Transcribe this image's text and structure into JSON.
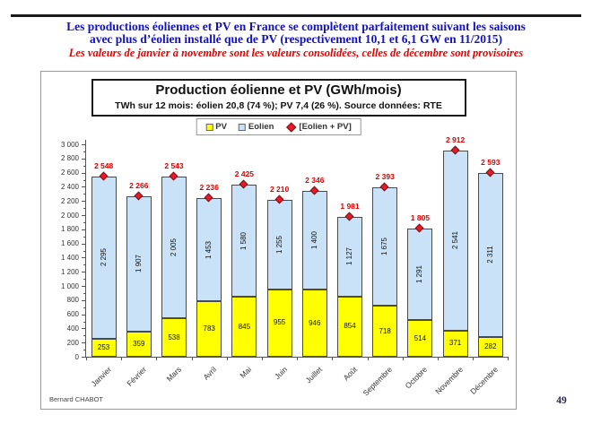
{
  "header": {
    "line1": "Les productions éoliennes et PV en France se complètent parfaitement suivant les saisons",
    "line2": "avec plus d’éolien installé que de PV (respectivement 10,1 et 6,1 GW en 11/2015)",
    "note": "Les valeurs de janvier à novembre sont les valeurs consolidées, celles de décembre sont provisoires"
  },
  "footer": {
    "credit": "Bernard CHABOT",
    "page_number": "49"
  },
  "colors": {
    "headline_blue": "#1212C4",
    "note_red": "#E80000",
    "pv_yellow": "#FFFF00",
    "eolien_blue": "#C9E2F8",
    "bar_border": "#4a4a4a",
    "marker_red": "#E8192C",
    "marker_border": "#7a0f0f",
    "total_label_red": "#E00000",
    "frame_border": "#9a9a9a"
  },
  "chart_data": {
    "type": "bar",
    "stacked": true,
    "title": "Production éolienne et PV (GWh/mois)",
    "subtitle": "TWh sur 12 mois: éolien 20,8 (74 %); PV 7,4 (26 %).  Source données: RTE",
    "unit": "GWh/mois",
    "legend_position": "top",
    "grid": false,
    "categories": [
      "Janvier",
      "Février",
      "Mars",
      "Avril",
      "Mai",
      "Juin",
      "Juillet",
      "Août",
      "Septembre",
      "Octobre",
      "Novembre",
      "Décembre"
    ],
    "series": [
      {
        "name": "PV",
        "color": "#FFFF00",
        "values": [
          253,
          359,
          538,
          783,
          845,
          955,
          946,
          854,
          718,
          514,
          371,
          282
        ],
        "labels": [
          "253",
          "359",
          "538",
          "783",
          "845",
          "955",
          "946",
          "854",
          "718",
          "514",
          "371",
          "282"
        ]
      },
      {
        "name": "Eolien",
        "color": "#C9E2F8",
        "values": [
          2295,
          1907,
          2005,
          1453,
          1580,
          1255,
          1400,
          1127,
          1675,
          1291,
          2541,
          2311
        ],
        "labels": [
          "2 295",
          "1 907",
          "2 005",
          "1 453",
          "1 580",
          "1 255",
          "1 400",
          "1 127",
          "1 675",
          "1 291",
          "2 541",
          "2 311"
        ]
      }
    ],
    "totals": {
      "name": "[Eolien + PV]",
      "values": [
        2548,
        2266,
        2543,
        2236,
        2425,
        2210,
        2346,
        1981,
        2393,
        1805,
        2912,
        2593
      ],
      "labels": [
        "2 548",
        "2 266",
        "2 543",
        "2 236",
        "2 425",
        "2 210",
        "2 346",
        "1 981",
        "2 393",
        "1 805",
        "2 912",
        "2 593"
      ]
    },
    "legend": [
      {
        "label": "PV",
        "marker": "square",
        "color": "#FFFF00"
      },
      {
        "label": "Eolien",
        "marker": "square",
        "color": "#C9E2F8"
      },
      {
        "label": "[Eolien + PV]",
        "marker": "diamond",
        "color": "#E8192C"
      }
    ],
    "ylim": [
      0,
      3000
    ],
    "y_tick_step": 200,
    "y_minor_tick_step": 100,
    "y_ticks": [
      {
        "value": 0,
        "label": "0"
      },
      {
        "value": 200,
        "label": "200"
      },
      {
        "value": 400,
        "label": "400"
      },
      {
        "value": 600,
        "label": "600"
      },
      {
        "value": 800,
        "label": "800"
      },
      {
        "value": 1000,
        "label": "1 000"
      },
      {
        "value": 1200,
        "label": "1 200"
      },
      {
        "value": 1400,
        "label": "1 400"
      },
      {
        "value": 1600,
        "label": "1 600"
      },
      {
        "value": 1800,
        "label": "1 800"
      },
      {
        "value": 2000,
        "label": "2 000"
      },
      {
        "value": 2200,
        "label": "2 200"
      },
      {
        "value": 2400,
        "label": "2 400"
      },
      {
        "value": 2600,
        "label": "2 600"
      },
      {
        "value": 2800,
        "label": "2 800"
      },
      {
        "value": 3000,
        "label": "3 000"
      }
    ]
  }
}
